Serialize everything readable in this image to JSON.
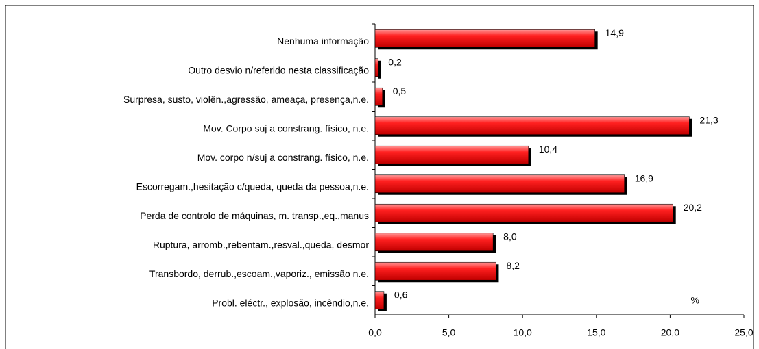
{
  "chart_data": {
    "type": "bar",
    "orientation": "horizontal",
    "categories": [
      "Nenhuma informação",
      "Outro desvio n/referido nesta classificação",
      "Surpresa, susto, violên.,agressão, ameaça, presença,n.e.",
      "Mov. Corpo suj a constrang. físico, n.e.",
      "Mov. corpo n/suj a constrang. físico, n.e.",
      "Escorregam.,hesitação c/queda, queda da pessoa,n.e.",
      "Perda de controlo de máquinas, m. transp.,eq.,manus",
      "Ruptura, arromb.,rebentam.,resval.,queda, desmor",
      "Transbordo, derrub.,escoam.,vaporiz., emissão n.e.",
      "Probl. eléctr., explosão, incêndio,n.e."
    ],
    "values": [
      14.9,
      0.2,
      0.5,
      21.3,
      10.4,
      16.9,
      20.2,
      8.0,
      8.2,
      0.6
    ],
    "value_labels": [
      "14,9",
      "0,2",
      "0,5",
      "21,3",
      "10,4",
      "16,9",
      "20,2",
      "8,0",
      "8,2",
      "0,6"
    ],
    "color": "#ff2020",
    "xlabel": "%",
    "xlim": [
      0,
      25
    ],
    "xticks": [
      {
        "value": 0,
        "label": "0,0"
      },
      {
        "value": 5,
        "label": "5,0"
      },
      {
        "value": 10,
        "label": "10,0"
      },
      {
        "value": 15,
        "label": "15,0"
      },
      {
        "value": 20,
        "label": "20,0"
      },
      {
        "value": 25,
        "label": "25,0"
      }
    ]
  }
}
